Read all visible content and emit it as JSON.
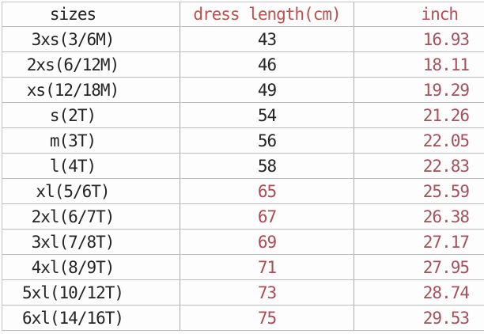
{
  "chart_data": {
    "type": "table",
    "title": "",
    "columns": [
      "sizes",
      "dress length(cm)",
      "inch"
    ],
    "rows": [
      [
        "3xs(3/6M)",
        43,
        16.93
      ],
      [
        "2xs(6/12M)",
        46,
        18.11
      ],
      [
        "xs(12/18M)",
        49,
        19.29
      ],
      [
        "s(2T)",
        54,
        21.26
      ],
      [
        "m(3T)",
        56,
        22.05
      ],
      [
        "l(4T)",
        58,
        22.83
      ],
      [
        "xl(5/6T)",
        65,
        25.59
      ],
      [
        "2xl(6/7T)",
        67,
        26.38
      ],
      [
        "3xl(7/8T)",
        69,
        27.17
      ],
      [
        "4xl(8/9T)",
        71,
        27.95
      ],
      [
        "5xl(10/12T)",
        73,
        28.74
      ],
      [
        "6xl(14/16T)",
        75,
        29.53
      ]
    ]
  },
  "table": {
    "headers": [
      {
        "label": "sizes",
        "color": "#242424"
      },
      {
        "label": "dress length(cm)",
        "color": "#c0504d"
      },
      {
        "label": "inch",
        "color": "#bb4e56"
      }
    ],
    "rows": [
      {
        "size": "3xs(3/6M)",
        "cm": "43",
        "inch": "16.93",
        "size_color": "#242424",
        "cm_color": "#242424",
        "inch_color": "#a6505b"
      },
      {
        "size": "2xs(6/12M)",
        "cm": "46",
        "inch": "18.11",
        "size_color": "#242424",
        "cm_color": "#242424",
        "inch_color": "#a6505b"
      },
      {
        "size": "xs(12/18M)",
        "cm": "49",
        "inch": "19.29",
        "size_color": "#242424",
        "cm_color": "#242424",
        "inch_color": "#a6505b"
      },
      {
        "size": "s(2T)",
        "cm": "54",
        "inch": "21.26",
        "size_color": "#242424",
        "cm_color": "#242424",
        "inch_color": "#a6505b"
      },
      {
        "size": "m(3T)",
        "cm": "56",
        "inch": "22.05",
        "size_color": "#242424",
        "cm_color": "#242424",
        "inch_color": "#a6505b"
      },
      {
        "size": "l(4T)",
        "cm": "58",
        "inch": "22.83",
        "size_color": "#242424",
        "cm_color": "#242424",
        "inch_color": "#a6505b"
      },
      {
        "size": "xl(5/6T)",
        "cm": "65",
        "inch": "25.59",
        "size_color": "#242424",
        "cm_color": "#ad4a54",
        "inch_color": "#a6505b"
      },
      {
        "size": "2xl(6/7T)",
        "cm": "67",
        "inch": "26.38",
        "size_color": "#242424",
        "cm_color": "#ad4a54",
        "inch_color": "#a6505b"
      },
      {
        "size": "3xl(7/8T)",
        "cm": "69",
        "inch": "27.17",
        "size_color": "#242424",
        "cm_color": "#ad4a54",
        "inch_color": "#a6505b"
      },
      {
        "size": "4xl(8/9T)",
        "cm": "71",
        "inch": "27.95",
        "size_color": "#242424",
        "cm_color": "#ad4a54",
        "inch_color": "#a6505b"
      },
      {
        "size": "5xl(10/12T)",
        "cm": "73",
        "inch": "28.74",
        "size_color": "#242424",
        "cm_color": "#ad4a54",
        "inch_color": "#a6505b"
      },
      {
        "size": "6xl(14/16T)",
        "cm": "75",
        "inch": "29.53",
        "size_color": "#242424",
        "cm_color": "#ad4a54",
        "inch_color": "#a6505b"
      }
    ],
    "grid_color_horizontal": "#bdbdbd",
    "grid_color_vertical": "#ababab"
  }
}
